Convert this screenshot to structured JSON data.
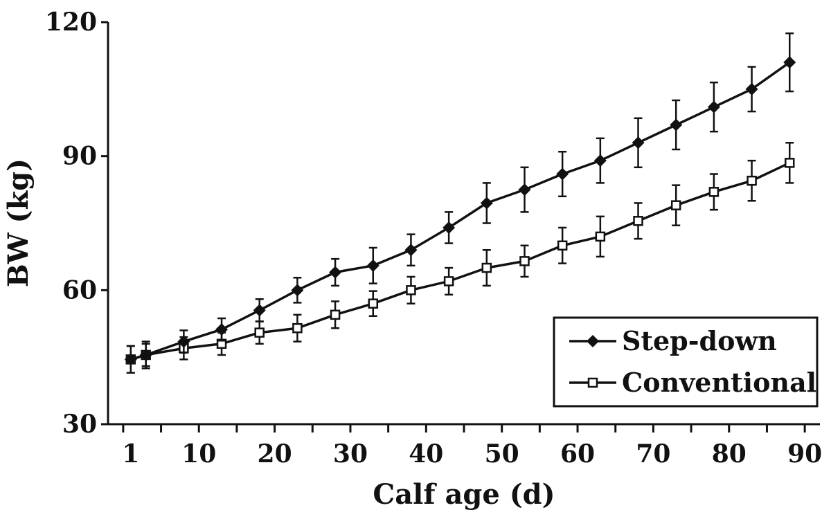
{
  "chart_data": {
    "type": "line",
    "title": "",
    "xlabel": "Calf age (d)",
    "ylabel": "BW (kg)",
    "xlim": [
      -2,
      92
    ],
    "ylim": [
      30,
      120
    ],
    "x_ticks": [
      1,
      10,
      20,
      30,
      40,
      50,
      60,
      70,
      80,
      90
    ],
    "y_ticks": [
      30,
      60,
      90,
      120
    ],
    "grid": false,
    "legend_position": "lower-right",
    "x": [
      1,
      3,
      8,
      13,
      18,
      23,
      28,
      33,
      38,
      43,
      48,
      53,
      58,
      63,
      68,
      73,
      78,
      83,
      88
    ],
    "series": [
      {
        "name": "Step-down",
        "marker": "filled-diamond",
        "color": "#111111",
        "values": [
          44.5,
          45.5,
          48.5,
          51.2,
          55.5,
          60.0,
          64.0,
          65.5,
          69.0,
          74.0,
          79.5,
          82.5,
          86.0,
          89.0,
          93.0,
          97.0,
          101.0,
          105.0,
          111.0
        ],
        "error": [
          3.0,
          2.5,
          2.5,
          2.5,
          2.5,
          2.8,
          3.0,
          4.0,
          3.5,
          3.5,
          4.5,
          5.0,
          5.0,
          5.0,
          5.5,
          5.5,
          5.5,
          5.0,
          6.5
        ]
      },
      {
        "name": "Conventional",
        "marker": "open-square",
        "color": "#111111",
        "values": [
          44.5,
          45.5,
          47.0,
          48.0,
          50.5,
          51.5,
          54.5,
          57.0,
          60.0,
          62.0,
          65.0,
          66.5,
          70.0,
          72.0,
          75.5,
          79.0,
          82.0,
          84.5,
          88.5
        ],
        "error": [
          3.0,
          3.0,
          2.5,
          2.5,
          2.5,
          3.0,
          3.0,
          2.8,
          3.0,
          3.0,
          4.0,
          3.5,
          4.0,
          4.5,
          4.0,
          4.5,
          4.0,
          4.5,
          4.5
        ]
      }
    ]
  }
}
